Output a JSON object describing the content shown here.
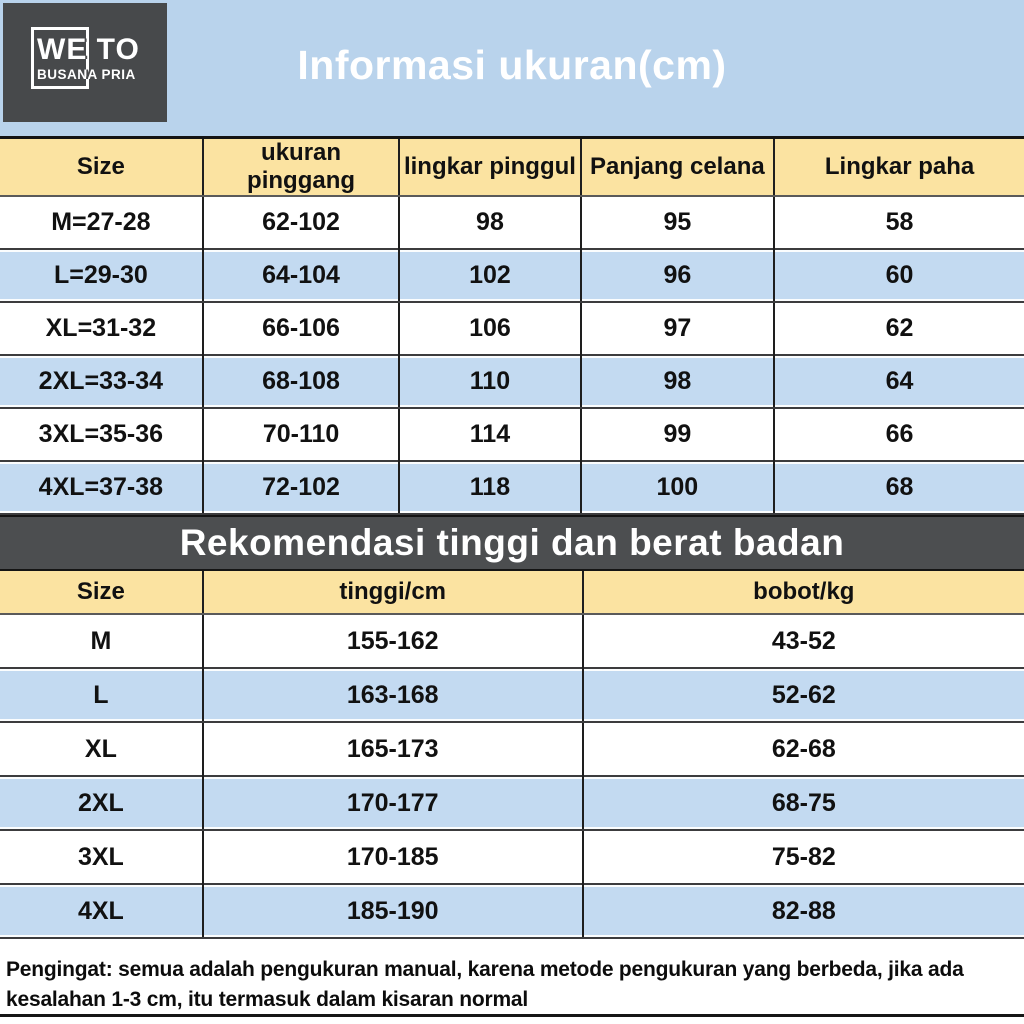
{
  "brand": {
    "line1": "WE TO",
    "line2": "BUSANA PRIA"
  },
  "header": {
    "title": "Informasi ukuran(cm)"
  },
  "size_table": {
    "columns": [
      "Size",
      "ukuran pinggang",
      "lingkar pinggul",
      "Panjang celana",
      "Lingkar paha"
    ],
    "rows": [
      [
        "M=27-28",
        "62-102",
        "98",
        "95",
        "58"
      ],
      [
        "L=29-30",
        "64-104",
        "102",
        "96",
        "60"
      ],
      [
        "XL=31-32",
        "66-106",
        "106",
        "97",
        "62"
      ],
      [
        "2XL=33-34",
        "68-108",
        "110",
        "98",
        "64"
      ],
      [
        "3XL=35-36",
        "70-110",
        "114",
        "99",
        "66"
      ],
      [
        "4XL=37-38",
        "72-102",
        "118",
        "100",
        "68"
      ]
    ]
  },
  "banner": {
    "title": "Rekomendasi tinggi dan berat badan"
  },
  "recommend_table": {
    "columns": [
      "Size",
      "tinggi/cm",
      "bobot/kg"
    ],
    "rows": [
      [
        "M",
        "155-162",
        "43-52"
      ],
      [
        "L",
        "163-168",
        "52-62"
      ],
      [
        "XL",
        "165-173",
        "62-68"
      ],
      [
        "2XL",
        "170-177",
        "68-75"
      ],
      [
        "3XL",
        "170-185",
        "75-82"
      ],
      [
        "4XL",
        "185-190",
        "82-88"
      ]
    ]
  },
  "footer": {
    "note": "Pengingat: semua adalah pengukuran manual, karena metode pengukuran yang berbeda, jika ada kesalahan 1-3 cm, itu termasuk dalam kisaran normal"
  },
  "colors": {
    "header_blue": "#b9d3ec",
    "row_blue": "#c3daf1",
    "header_yellow": "#fbe3a1",
    "logo_gray": "#47494b",
    "banner_gray": "#4c4e50",
    "text_black": "#111111",
    "title_white": "#ffffff"
  }
}
